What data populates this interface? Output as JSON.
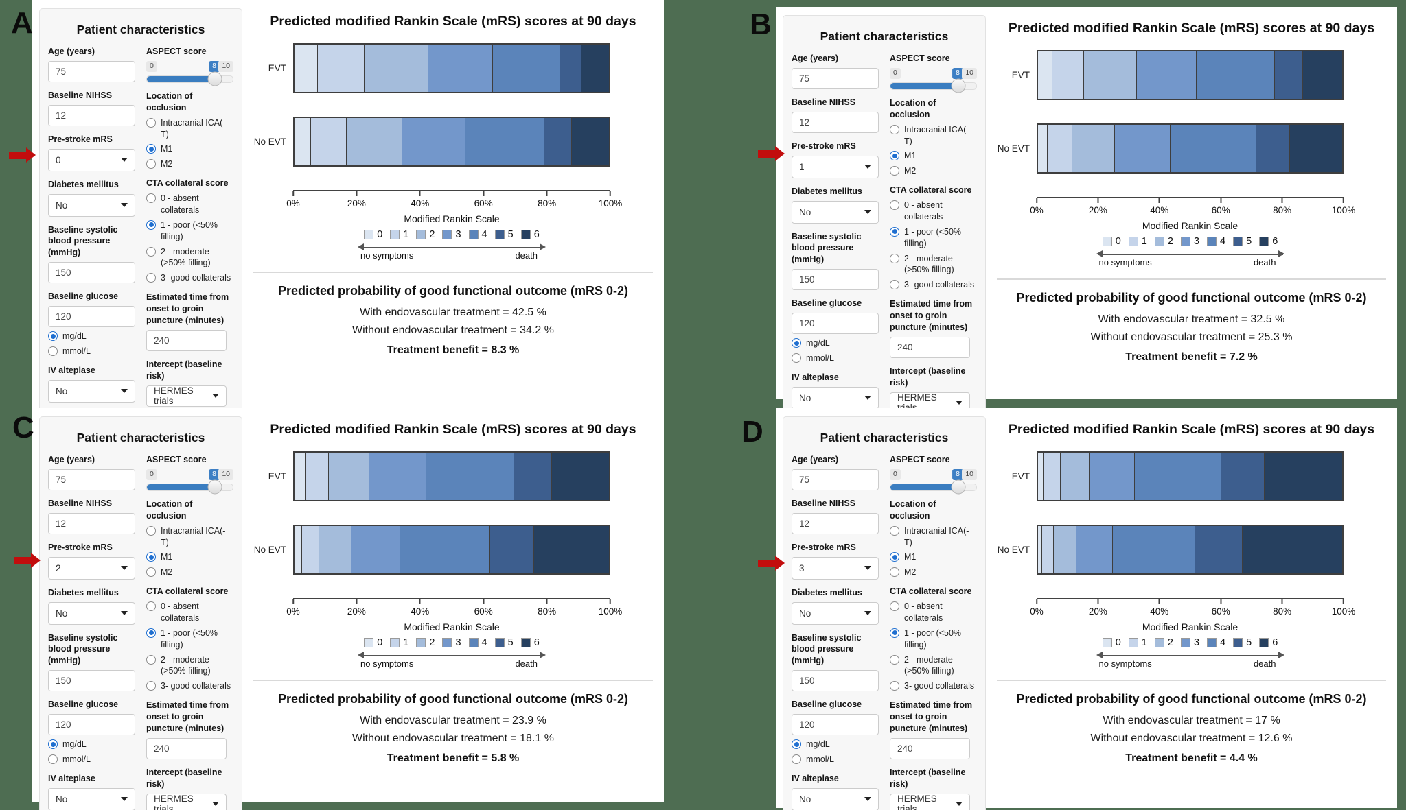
{
  "shared": {
    "colors": {
      "background_green": "#4e6d52",
      "highlight_arrow_red": "#c20d0d",
      "accent_blue": "#3a7dc0",
      "radio_selected_blue": "#1f6fd0"
    },
    "form": {
      "title": "Patient characteristics",
      "age_label": "Age (years)",
      "nihss_label": "Baseline NIHSS",
      "prestroke_label": "Pre-stroke mRS",
      "diabetes_label": "Diabetes mellitus",
      "sbp_label": "Baseline systolic blood pressure (mmHg)",
      "glucose_label": "Baseline glucose",
      "glucose_units": [
        "mg/dL",
        "mmol/L"
      ],
      "iv_label": "IV alteplase",
      "aspect_label": "ASPECT score",
      "aspect_min": "0",
      "aspect_max": "10",
      "occlusion_label": "Location of occlusion",
      "occlusion_options": [
        "Intracranial ICA(-T)",
        "M1",
        "M2"
      ],
      "cta_label": "CTA collateral score",
      "cta_options": [
        "0 - absent collaterals",
        "1 - poor (<50% filling)",
        "2 - moderate (>50% filling)",
        "3- good collaterals"
      ],
      "time_label": "Estimated time from onset to groin puncture (minutes)",
      "intercept_label": "Intercept (baseline risk)"
    },
    "chart": {
      "mrs_colors": [
        "#dbe5f1",
        "#c5d4ea",
        "#a4bcdb",
        "#7397cb",
        "#5b84ba",
        "#3d5e8e",
        "#26405f"
      ],
      "arrow_left": "no symptoms",
      "arrow_right": "death"
    },
    "outcome": {
      "heading": "Predicted probability of good functional outcome (mRS 0-2)",
      "with_label": "With endovascular treatment =",
      "without_label": "Without endovascular treatment =",
      "benefit_label": "Treatment benefit ="
    }
  },
  "panels": [
    {
      "id": "A",
      "form": {
        "age": "75",
        "nihss": "12",
        "prestroke_mrs": "0",
        "diabetes": "No",
        "sbp": "150",
        "glucose": "120",
        "glucose_unit": "mg/dL",
        "iv_alteplase": "No",
        "aspect": "8",
        "occlusion": "M1",
        "cta": "1 - poor (<50% filling)",
        "time": "240",
        "intercept": "HERMES trials"
      },
      "outcome": {
        "with_value": "42.5 %",
        "without_value": "34.2 %",
        "benefit_value": "8.3 %"
      }
    },
    {
      "id": "B",
      "form": {
        "age": "75",
        "nihss": "12",
        "prestroke_mrs": "1",
        "diabetes": "No",
        "sbp": "150",
        "glucose": "120",
        "glucose_unit": "mg/dL",
        "iv_alteplase": "No",
        "aspect": "8",
        "occlusion": "M1",
        "cta": "1 - poor (<50% filling)",
        "time": "240",
        "intercept": "HERMES trials"
      },
      "outcome": {
        "with_value": "32.5 %",
        "without_value": "25.3 %",
        "benefit_value": "7.2 %"
      }
    },
    {
      "id": "C",
      "form": {
        "age": "75",
        "nihss": "12",
        "prestroke_mrs": "2",
        "diabetes": "No",
        "sbp": "150",
        "glucose": "120",
        "glucose_unit": "mg/dL",
        "iv_alteplase": "No",
        "aspect": "8",
        "occlusion": "M1",
        "cta": "1 - poor (<50% filling)",
        "time": "240",
        "intercept": "HERMES trials"
      },
      "outcome": {
        "with_value": "23.9 %",
        "without_value": "18.1 %",
        "benefit_value": "5.8 %"
      }
    },
    {
      "id": "D",
      "form": {
        "age": "75",
        "nihss": "12",
        "prestroke_mrs": "3",
        "diabetes": "No",
        "sbp": "150",
        "glucose": "120",
        "glucose_unit": "mg/dL",
        "iv_alteplase": "No",
        "aspect": "8",
        "occlusion": "M1",
        "cta": "1 - poor (<50% filling)",
        "time": "240",
        "intercept": "HERMES trials"
      },
      "outcome": {
        "with_value": "17 %",
        "without_value": "12.6 %",
        "benefit_value": "4.4 %"
      }
    }
  ],
  "chart_data": [
    {
      "panel": "A",
      "type": "bar",
      "stacked": true,
      "orientation": "horizontal",
      "title": "Predicted modified Rankin Scale (mRS) scores at 90 days",
      "xlabel": "Modified Rankin Scale",
      "xlim": [
        0,
        100
      ],
      "x_tick_labels": [
        "0%",
        "20%",
        "40%",
        "60%",
        "80%",
        "100%"
      ],
      "legend_entries": [
        "0",
        "1",
        "2",
        "3",
        "4",
        "5",
        "6"
      ],
      "series": [
        {
          "name": "EVT",
          "values": [
            7.4,
            14.8,
            20.3,
            20.5,
            21.5,
            6.7,
            8.8
          ]
        },
        {
          "name": "No EVT",
          "values": [
            5.2,
            11.5,
            17.5,
            20.2,
            25.1,
            8.8,
            11.7
          ]
        }
      ]
    },
    {
      "panel": "B",
      "type": "bar",
      "stacked": true,
      "orientation": "horizontal",
      "title": "Predicted modified Rankin Scale (mRS) scores at 90 days",
      "xlabel": "Modified Rankin Scale",
      "xlim": [
        0,
        100
      ],
      "x_tick_labels": [
        "0%",
        "20%",
        "40%",
        "60%",
        "80%",
        "100%"
      ],
      "legend_entries": [
        "0",
        "1",
        "2",
        "3",
        "4",
        "5",
        "6"
      ],
      "series": [
        {
          "name": "EVT",
          "values": [
            4.8,
            10.4,
            17.3,
            19.7,
            25.7,
            9.3,
            12.8
          ]
        },
        {
          "name": "No EVT",
          "values": [
            3.1,
            8.3,
            13.9,
            18.3,
            28.1,
            11.2,
            17.1
          ]
        }
      ]
    },
    {
      "panel": "C",
      "type": "bar",
      "stacked": true,
      "orientation": "horizontal",
      "title": "Predicted modified Rankin Scale (mRS) scores at 90 days",
      "xlabel": "Modified Rankin Scale",
      "xlim": [
        0,
        100
      ],
      "x_tick_labels": [
        "0%",
        "20%",
        "40%",
        "60%",
        "80%",
        "100%"
      ],
      "legend_entries": [
        "0",
        "1",
        "2",
        "3",
        "4",
        "5",
        "6"
      ],
      "series": [
        {
          "name": "EVT",
          "values": [
            3.5,
            7.4,
            13.0,
            18.0,
            28.0,
            12.0,
            18.1
          ]
        },
        {
          "name": "No EVT",
          "values": [
            2.3,
            5.6,
            10.2,
            15.5,
            28.7,
            13.8,
            23.9
          ]
        }
      ]
    },
    {
      "panel": "D",
      "type": "bar",
      "stacked": true,
      "orientation": "horizontal",
      "title": "Predicted modified Rankin Scale (mRS) scores at 90 days",
      "xlabel": "Modified Rankin Scale",
      "xlim": [
        0,
        100
      ],
      "x_tick_labels": [
        "0%",
        "20%",
        "40%",
        "60%",
        "80%",
        "100%"
      ],
      "legend_entries": [
        "0",
        "1",
        "2",
        "3",
        "4",
        "5",
        "6"
      ],
      "series": [
        {
          "name": "EVT",
          "values": [
            1.9,
            5.5,
            9.6,
            14.8,
            28.5,
            14.1,
            25.6
          ]
        },
        {
          "name": "No EVT",
          "values": [
            1.4,
            3.9,
            7.3,
            12.1,
            27.1,
            15.4,
            32.8
          ]
        }
      ]
    }
  ]
}
